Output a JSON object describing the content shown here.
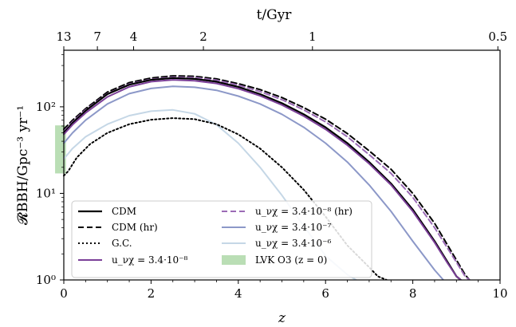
{
  "chart_data": {
    "type": "line",
    "xlabel": "z",
    "ylabel": "𝓡BBH/Gpc⁻³ yr⁻¹",
    "top_axis_label": "t/Gyr",
    "xlim": [
      0,
      10
    ],
    "ylim": [
      1,
      450
    ],
    "yscale": "log",
    "x_ticks": [
      "0",
      "2",
      "4",
      "6",
      "8",
      "10"
    ],
    "x_tick_values": [
      0,
      2,
      4,
      6,
      8,
      10
    ],
    "y_ticks": [
      "10⁰",
      "10¹",
      "10²"
    ],
    "y_tick_values": [
      1,
      10,
      100
    ],
    "top_ticks": [
      "13",
      "7",
      "4",
      "2",
      "1",
      "0.5"
    ],
    "top_tick_z": [
      0.0,
      0.77,
      1.6,
      3.2,
      5.7,
      9.95
    ],
    "grid": false,
    "legend_position": "lower-left",
    "series": [
      {
        "name": "CDM",
        "color": "#000000",
        "dash": "solid",
        "width": 2.2,
        "x": [
          0,
          0.2,
          0.5,
          1.0,
          1.5,
          2.0,
          2.5,
          3.0,
          3.5,
          4.0,
          4.5,
          5.0,
          5.5,
          6.0,
          6.5,
          7.0,
          7.5,
          8.0,
          8.5,
          8.8,
          9.0,
          9.1
        ],
        "y": [
          50,
          65,
          90,
          140,
          180,
          205,
          215,
          210,
          195,
          170,
          140,
          110,
          82,
          58,
          38,
          23,
          13,
          6.5,
          2.8,
          1.6,
          1.1,
          1.0
        ]
      },
      {
        "name": "CDM (hr)",
        "color": "#000000",
        "dash": "7,4",
        "width": 2.0,
        "x": [
          0,
          0.2,
          0.5,
          1.0,
          1.5,
          2.0,
          2.5,
          3.0,
          3.5,
          4.0,
          4.5,
          5.0,
          5.5,
          6.0,
          6.5,
          7.0,
          7.5,
          8.0,
          8.5,
          9.0,
          9.2,
          9.3
        ],
        "y": [
          55,
          70,
          95,
          148,
          190,
          215,
          228,
          225,
          210,
          185,
          158,
          128,
          98,
          72,
          49,
          31,
          19,
          10,
          4.5,
          1.7,
          1.15,
          1.0
        ]
      },
      {
        "name": "G.C.",
        "color": "#000000",
        "dash": "2,3",
        "width": 2.0,
        "x": [
          0,
          0.1,
          0.3,
          0.6,
          1.0,
          1.5,
          2.0,
          2.5,
          3.0,
          3.5,
          4.0,
          4.5,
          5.0,
          5.5,
          6.0,
          6.5,
          7.0,
          7.2,
          7.4
        ],
        "y": [
          16,
          18,
          26,
          37,
          50,
          63,
          71,
          74,
          72,
          63,
          48,
          33,
          20,
          11,
          5.4,
          2.5,
          1.4,
          1.1,
          1.0
        ]
      },
      {
        "name": "u_νχ = 3.4·10⁻⁸",
        "color": "#7b3f98",
        "dash": "solid",
        "width": 2.0,
        "x": [
          0,
          0.2,
          0.5,
          1.0,
          1.5,
          2.0,
          2.5,
          3.0,
          3.5,
          4.0,
          4.5,
          5.0,
          5.5,
          6.0,
          6.5,
          7.0,
          7.5,
          8.0,
          8.5,
          8.8,
          9.0,
          9.1
        ],
        "y": [
          48,
          62,
          85,
          130,
          170,
          195,
          205,
          200,
          186,
          162,
          134,
          105,
          78,
          55,
          36,
          22,
          12.5,
          6.2,
          2.7,
          1.55,
          1.1,
          1.0
        ]
      },
      {
        "name": "u_νχ = 3.4·10⁻⁸ (hr)",
        "color": "#9b6bb5",
        "dash": "7,4",
        "width": 2.0,
        "x": [
          0,
          0.2,
          0.5,
          1.0,
          1.5,
          2.0,
          2.5,
          3.0,
          3.5,
          4.0,
          4.5,
          5.0,
          5.5,
          6.0,
          6.5,
          7.0,
          7.5,
          8.0,
          8.5,
          9.0,
          9.2,
          9.3
        ],
        "y": [
          52,
          67,
          92,
          142,
          183,
          208,
          220,
          218,
          203,
          178,
          150,
          121,
          92,
          67,
          45,
          28,
          17,
          9,
          4,
          1.6,
          1.1,
          1.0
        ]
      },
      {
        "name": "u_νχ = 3.4·10⁻⁷",
        "color": "#8c98c8",
        "dash": "solid",
        "width": 2.0,
        "x": [
          0,
          0.2,
          0.5,
          1.0,
          1.5,
          2.0,
          2.5,
          3.0,
          3.5,
          4.0,
          4.5,
          5.0,
          5.5,
          6.0,
          6.5,
          7.0,
          7.5,
          8.0,
          8.5,
          8.7
        ],
        "y": [
          38,
          50,
          70,
          108,
          142,
          163,
          172,
          168,
          155,
          133,
          108,
          82,
          58,
          38,
          23,
          12.5,
          6.2,
          2.8,
          1.3,
          1.0
        ]
      },
      {
        "name": "u_νχ = 3.4·10⁻⁶",
        "color": "#c5d7e6",
        "dash": "solid",
        "width": 2.0,
        "x": [
          0,
          0.2,
          0.5,
          1.0,
          1.5,
          2.0,
          2.5,
          3.0,
          3.5,
          4.0,
          4.5,
          5.0,
          5.5,
          6.0,
          6.5,
          6.7
        ],
        "y": [
          25,
          33,
          45,
          63,
          79,
          89,
          92,
          83,
          62,
          38,
          20,
          9.5,
          4.2,
          1.9,
          1.15,
          1.0
        ]
      }
    ],
    "bands": [
      {
        "name": "LVK O3 (z = 0)",
        "color": "#a9d6a3",
        "x_range": [
          -0.2,
          0.05
        ],
        "y_range": [
          17,
          61
        ]
      }
    ]
  }
}
